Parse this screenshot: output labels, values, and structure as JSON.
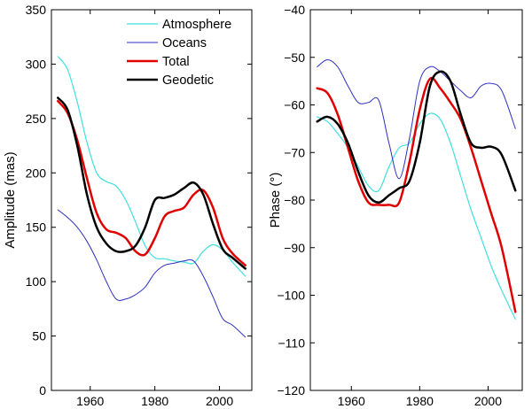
{
  "chart_data": [
    {
      "type": "line",
      "title": "",
      "xlabel": "",
      "ylabel": "Amplitude (mas)",
      "xlim": [
        1948,
        2010
      ],
      "ylim": [
        0,
        350
      ],
      "xticks": [
        1960,
        1980,
        2000
      ],
      "xtick_labels": [
        "1960",
        "1980",
        "2000"
      ],
      "yticks": [
        0,
        50,
        100,
        150,
        200,
        250,
        300,
        350
      ],
      "ytick_labels": [
        "0",
        "50",
        "100",
        "150",
        "200",
        "250",
        "300",
        "350"
      ],
      "legend": {
        "position": "top-right",
        "entries": [
          "Atmosphere",
          "Oceans",
          "Total",
          "Geodetic"
        ]
      },
      "series": [
        {
          "name": "Atmosphere",
          "color": "#40e0e0",
          "x": [
            1950,
            1953,
            1956,
            1959,
            1962,
            1965,
            1968,
            1971,
            1974,
            1977,
            1980,
            1983,
            1986,
            1989,
            1992,
            1995,
            1998,
            2001,
            2004,
            2008
          ],
          "y": [
            307,
            295,
            265,
            228,
            200,
            192,
            188,
            175,
            155,
            133,
            122,
            121,
            119,
            118,
            117,
            128,
            134,
            129,
            118,
            105
          ]
        },
        {
          "name": "Oceans",
          "color": "#3030c0",
          "x": [
            1950,
            1953,
            1956,
            1959,
            1962,
            1965,
            1968,
            1971,
            1974,
            1977,
            1980,
            1983,
            1986,
            1989,
            1992,
            1995,
            1998,
            2001,
            2004,
            2008
          ],
          "y": [
            166,
            159,
            150,
            137,
            120,
            100,
            84,
            84,
            88,
            95,
            108,
            115,
            117,
            119,
            119,
            105,
            86,
            66,
            60,
            49
          ]
        },
        {
          "name": "Total",
          "color": "#e00000",
          "x": [
            1950,
            1953,
            1956,
            1959,
            1962,
            1965,
            1968,
            1971,
            1974,
            1977,
            1980,
            1983,
            1986,
            1989,
            1992,
            1995,
            1998,
            2001,
            2004,
            2008
          ],
          "y": [
            266,
            255,
            230,
            195,
            163,
            148,
            145,
            140,
            128,
            125,
            140,
            160,
            165,
            168,
            180,
            184,
            168,
            140,
            126,
            115
          ]
        },
        {
          "name": "Geodetic",
          "color": "#000000",
          "x": [
            1950,
            1953,
            1956,
            1959,
            1962,
            1965,
            1968,
            1971,
            1974,
            1977,
            1980,
            1983,
            1986,
            1989,
            1992,
            1995,
            1998,
            2001,
            2004,
            2008
          ],
          "y": [
            269,
            258,
            225,
            180,
            150,
            135,
            128,
            128,
            133,
            150,
            175,
            177,
            180,
            186,
            191,
            180,
            153,
            130,
            122,
            112
          ]
        }
      ]
    },
    {
      "type": "line",
      "title": "",
      "xlabel": "",
      "ylabel": "Phase (°)",
      "xlim": [
        1948,
        2010
      ],
      "ylim": [
        -120,
        -40
      ],
      "xticks": [
        1960,
        1980,
        2000
      ],
      "xtick_labels": [
        "1960",
        "1980",
        "2000"
      ],
      "yticks": [
        -120,
        -110,
        -100,
        -90,
        -80,
        -70,
        -60,
        -50,
        -40
      ],
      "ytick_labels": [
        "−120",
        "−110",
        "−100",
        "−90",
        "−80",
        "−70",
        "−60",
        "−50",
        "−40"
      ],
      "series": [
        {
          "name": "Atmosphere",
          "color": "#40e0e0",
          "x": [
            1950,
            1953,
            1956,
            1959,
            1962,
            1965,
            1968,
            1971,
            1974,
            1977,
            1980,
            1983,
            1986,
            1989,
            1992,
            1995,
            1998,
            2001,
            2004,
            2008
          ],
          "y": [
            -62.5,
            -63.5,
            -66,
            -69,
            -73,
            -77,
            -78,
            -73,
            -69,
            -68,
            -64,
            -61.8,
            -63,
            -68,
            -75,
            -82,
            -88,
            -94,
            -99,
            -105
          ]
        },
        {
          "name": "Oceans",
          "color": "#3030c0",
          "x": [
            1950,
            1953,
            1956,
            1959,
            1962,
            1965,
            1968,
            1971,
            1974,
            1977,
            1980,
            1983,
            1986,
            1989,
            1992,
            1995,
            1998,
            2001,
            2004,
            2008
          ],
          "y": [
            -52,
            -50.5,
            -52,
            -56,
            -59.5,
            -59.5,
            -59,
            -68,
            -75.5,
            -67,
            -55,
            -52,
            -53,
            -55,
            -57,
            -58.5,
            -56,
            -55.5,
            -57,
            -65
          ]
        },
        {
          "name": "Total",
          "color": "#e00000",
          "x": [
            1950,
            1953,
            1956,
            1959,
            1962,
            1965,
            1968,
            1971,
            1974,
            1977,
            1980,
            1983,
            1986,
            1989,
            1992,
            1995,
            1998,
            2001,
            2004,
            2008
          ],
          "y": [
            -56.5,
            -57.5,
            -62,
            -69,
            -76,
            -80.5,
            -81,
            -81,
            -80.5,
            -72,
            -61,
            -54.5,
            -56.5,
            -59.5,
            -63,
            -69,
            -76,
            -83,
            -90,
            -103.5
          ]
        },
        {
          "name": "Geodetic",
          "color": "#000000",
          "x": [
            1950,
            1953,
            1956,
            1959,
            1962,
            1965,
            1968,
            1971,
            1974,
            1977,
            1980,
            1983,
            1986,
            1989,
            1992,
            1995,
            1998,
            2001,
            2004,
            2008
          ],
          "y": [
            -63.5,
            -62.5,
            -64,
            -68,
            -74,
            -79,
            -80.5,
            -79,
            -77.5,
            -76,
            -68,
            -56,
            -53,
            -55,
            -62,
            -68,
            -69,
            -68.8,
            -70.5,
            -78
          ]
        }
      ]
    }
  ]
}
